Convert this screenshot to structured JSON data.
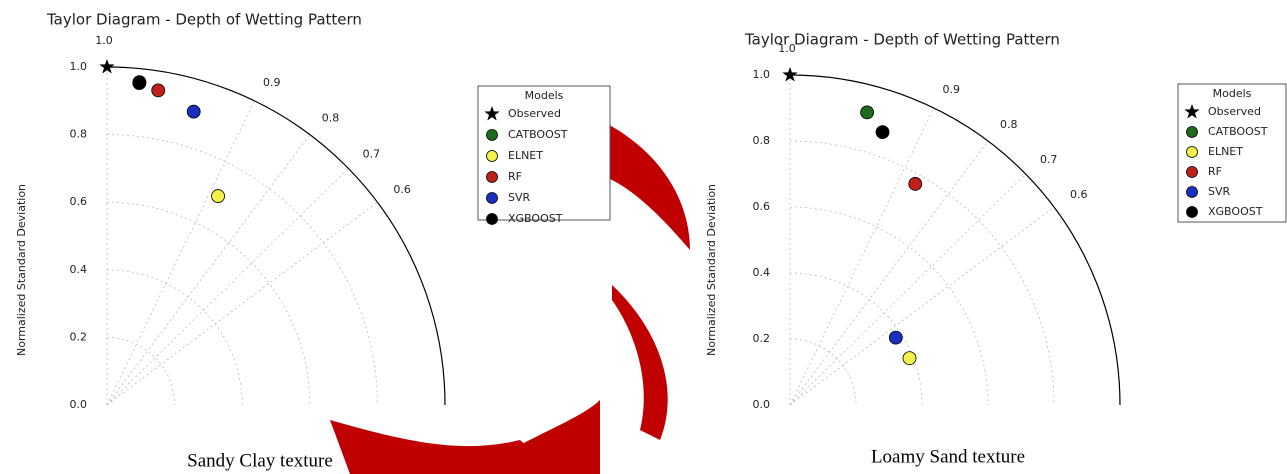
{
  "chart_data": [
    {
      "type": "taylor",
      "title": "Taylor Diagram - Depth of Wetting Pattern",
      "ylabel": "Normalized Standard Deviation",
      "caption": "Sandy Clay texture",
      "legend_title": "Models",
      "ylim": [
        0,
        1.0
      ],
      "yticks": [
        {
          "value": 0,
          "label": "0.0"
        },
        0.2,
        0.4,
        0.6,
        0.8,
        {
          "value": 1,
          "label": "1.0"
        }
      ],
      "corrticks": [
        0.6,
        0.7,
        0.8,
        0.9,
        {
          "value": 1,
          "label": "1.0"
        }
      ],
      "series": [
        {
          "name": "Observed",
          "color": "#000000",
          "marker": "star",
          "std": 1.0,
          "corr": 1.0
        },
        {
          "name": "CATBOOST",
          "color": "#1e6b1e",
          "std": 0.96,
          "corr": 0.995
        },
        {
          "name": "ELNET",
          "color": "#f2f04a",
          "std": 0.7,
          "corr": 0.883
        },
        {
          "name": "RF",
          "color": "#c0201a",
          "std": 0.943,
          "corr": 0.987
        },
        {
          "name": "SVR",
          "color": "#1a2fc0",
          "std": 0.905,
          "corr": 0.959
        },
        {
          "name": "XGBOOST",
          "color": "#000000",
          "std": 0.957,
          "corr": 0.995
        }
      ]
    },
    {
      "type": "taylor",
      "title": "Taylor Diagram - Depth of Wetting Pattern",
      "ylabel": "Normalized Standard Deviation",
      "caption": "Loamy Sand texture",
      "legend_title": "Models",
      "ylim": [
        0,
        1.0
      ],
      "yticks": [
        {
          "value": 0,
          "label": "0.0"
        },
        0.2,
        0.4,
        0.6,
        0.8,
        {
          "value": 1,
          "label": "1.0"
        }
      ],
      "corrticks": [
        0.6,
        0.7,
        0.8,
        0.9,
        {
          "value": 1,
          "label": "1.0"
        }
      ],
      "series": [
        {
          "name": "Observed",
          "color": "#000000",
          "marker": "star",
          "std": 1.0,
          "corr": 1.0
        },
        {
          "name": "CATBOOST",
          "color": "#1e6b1e",
          "std": 0.917,
          "corr": 0.967
        },
        {
          "name": "ELNET",
          "color": "#f2f04a",
          "std": 0.389,
          "corr": 0.365
        },
        {
          "name": "RF",
          "color": "#c0201a",
          "std": 0.77,
          "corr": 0.87
        },
        {
          "name": "SVR",
          "color": "#1a2fc0",
          "std": 0.38,
          "corr": 0.537
        },
        {
          "name": "XGBOOST",
          "color": "#000000",
          "std": 0.873,
          "corr": 0.947
        }
      ]
    }
  ]
}
